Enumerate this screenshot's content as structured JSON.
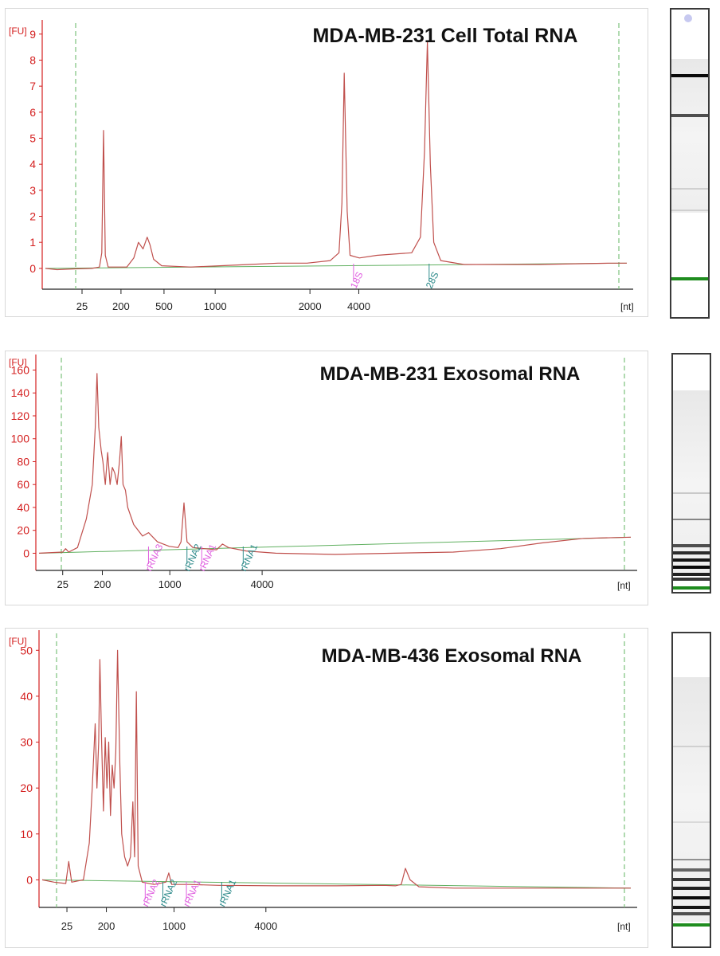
{
  "chart_data": [
    {
      "type": "line",
      "title": "MDA-MB-231 Cell Total RNA",
      "ylabel": "[FU]",
      "xlabel": "[nt]",
      "ylim": [
        -0.8,
        9.3
      ],
      "yticks": [
        0,
        1,
        2,
        3,
        4,
        5,
        6,
        7,
        8,
        9
      ],
      "xticks": [
        {
          "label": "25",
          "t": 0.063
        },
        {
          "label": "200",
          "t": 0.13
        },
        {
          "label": "500",
          "t": 0.204
        },
        {
          "label": "1000",
          "t": 0.292
        },
        {
          "label": "2000",
          "t": 0.455
        },
        {
          "label": "4000",
          "t": 0.539
        }
      ],
      "grid": false,
      "series": [
        {
          "values": [
            [
              0,
              0.0
            ],
            [
              0.02,
              -0.05
            ],
            [
              0.05,
              -0.02
            ],
            [
              0.08,
              0.0
            ],
            [
              0.093,
              0.05
            ],
            [
              0.097,
              0.6
            ],
            [
              0.1,
              5.3
            ],
            [
              0.103,
              0.5
            ],
            [
              0.108,
              0.05
            ],
            [
              0.14,
              0.05
            ],
            [
              0.152,
              0.4
            ],
            [
              0.16,
              1.0
            ],
            [
              0.168,
              0.75
            ],
            [
              0.175,
              1.2
            ],
            [
              0.18,
              0.9
            ],
            [
              0.186,
              0.35
            ],
            [
              0.2,
              0.1
            ],
            [
              0.25,
              0.05
            ],
            [
              0.3,
              0.1
            ],
            [
              0.35,
              0.15
            ],
            [
              0.4,
              0.2
            ],
            [
              0.45,
              0.2
            ],
            [
              0.49,
              0.3
            ],
            [
              0.505,
              0.6
            ],
            [
              0.51,
              2.5
            ],
            [
              0.514,
              7.5
            ],
            [
              0.519,
              2.2
            ],
            [
              0.524,
              0.5
            ],
            [
              0.54,
              0.4
            ],
            [
              0.57,
              0.5
            ],
            [
              0.6,
              0.55
            ],
            [
              0.63,
              0.6
            ],
            [
              0.645,
              1.2
            ],
            [
              0.652,
              4.5
            ],
            [
              0.657,
              8.7
            ],
            [
              0.662,
              4.0
            ],
            [
              0.668,
              1.0
            ],
            [
              0.68,
              0.3
            ],
            [
              0.72,
              0.15
            ],
            [
              0.78,
              0.15
            ],
            [
              0.85,
              0.15
            ],
            [
              0.92,
              0.18
            ],
            [
              0.97,
              0.2
            ],
            [
              1.0,
              0.2
            ]
          ]
        }
      ],
      "annotations": [
        {
          "label": "18S",
          "color": "#e060e0",
          "x": 0.53
        },
        {
          "label": "28S",
          "color": "#2e8b8b",
          "x": 0.66
        }
      ],
      "gel": {
        "bands": [
          {
            "pos": 0.21,
            "strength": 1.0
          },
          {
            "pos": 0.34,
            "strength": 0.7
          },
          {
            "pos": 0.58,
            "strength": 0.12
          },
          {
            "pos": 0.65,
            "strength": 0.12
          }
        ],
        "smear": [
          0.16,
          0.66
        ],
        "marker": 0.87,
        "well_dot": true
      }
    },
    {
      "type": "line",
      "title": "MDA-MB-231 Exosomal RNA",
      "ylabel": "[FU]",
      "xlabel": "[nt]",
      "ylim": [
        -15,
        168
      ],
      "yticks": [
        0,
        20,
        40,
        60,
        80,
        100,
        120,
        140,
        160
      ],
      "xticks": [
        {
          "label": "25",
          "t": 0.04
        },
        {
          "label": "200",
          "t": 0.107
        },
        {
          "label": "1000",
          "t": 0.221
        },
        {
          "label": "4000",
          "t": 0.377
        }
      ],
      "grid": false,
      "series": [
        {
          "values": [
            [
              0,
              0.0
            ],
            [
              0.04,
              1.0
            ],
            [
              0.045,
              4.0
            ],
            [
              0.05,
              1.0
            ],
            [
              0.065,
              5.0
            ],
            [
              0.08,
              30.0
            ],
            [
              0.09,
              60.0
            ],
            [
              0.095,
              110.0
            ],
            [
              0.098,
              157.0
            ],
            [
              0.101,
              110.0
            ],
            [
              0.105,
              90.0
            ],
            [
              0.108,
              80.0
            ],
            [
              0.112,
              60.0
            ],
            [
              0.116,
              88.0
            ],
            [
              0.12,
              60.0
            ],
            [
              0.124,
              75.0
            ],
            [
              0.128,
              70.0
            ],
            [
              0.132,
              60.0
            ],
            [
              0.136,
              80.0
            ],
            [
              0.139,
              102.0
            ],
            [
              0.142,
              60.0
            ],
            [
              0.146,
              55.0
            ],
            [
              0.15,
              40.0
            ],
            [
              0.16,
              25.0
            ],
            [
              0.175,
              15.0
            ],
            [
              0.185,
              18.0
            ],
            [
              0.2,
              10.0
            ],
            [
              0.22,
              6.0
            ],
            [
              0.235,
              5.0
            ],
            [
              0.24,
              10.0
            ],
            [
              0.245,
              44.0
            ],
            [
              0.25,
              10.0
            ],
            [
              0.26,
              5.0
            ],
            [
              0.28,
              4.0
            ],
            [
              0.3,
              3.0
            ],
            [
              0.31,
              8.0
            ],
            [
              0.32,
              5.0
            ],
            [
              0.35,
              2.0
            ],
            [
              0.4,
              0.0
            ],
            [
              0.5,
              -1.0
            ],
            [
              0.6,
              0.0
            ],
            [
              0.7,
              1.0
            ],
            [
              0.78,
              4.0
            ],
            [
              0.85,
              9.0
            ],
            [
              0.92,
              13.0
            ],
            [
              1.0,
              14.0
            ]
          ]
        }
      ],
      "annotations": [
        {
          "label": "rRNA3",
          "color": "#e060e0",
          "x": 0.185
        },
        {
          "label": "rRNA2",
          "color": "#2e8b8b",
          "x": 0.25
        },
        {
          "label": "rRNA1",
          "color": "#e060e0",
          "x": 0.275
        },
        {
          "label": "rRNA1",
          "color": "#2e8b8b",
          "x": 0.345
        }
      ],
      "gel": {
        "bands": [
          {
            "pos": 0.58,
            "strength": 0.15
          },
          {
            "pos": 0.69,
            "strength": 0.45
          },
          {
            "pos": 0.8,
            "strength": 0.7
          },
          {
            "pos": 0.83,
            "strength": 0.85
          },
          {
            "pos": 0.86,
            "strength": 0.95
          },
          {
            "pos": 0.89,
            "strength": 1.0
          },
          {
            "pos": 0.92,
            "strength": 0.9
          },
          {
            "pos": 0.94,
            "strength": 0.8
          }
        ],
        "smear": [
          0.15,
          0.93
        ],
        "marker": 0.975,
        "well_dot": false
      }
    },
    {
      "type": "line",
      "title": "MDA-MB-436 Exosomal RNA",
      "ylabel": "[FU]",
      "xlabel": "[nt]",
      "ylim": [
        -6,
        53
      ],
      "yticks": [
        0,
        10,
        20,
        30,
        40,
        50
      ],
      "xticks": [
        {
          "label": "25",
          "t": 0.042
        },
        {
          "label": "200",
          "t": 0.109
        },
        {
          "label": "1000",
          "t": 0.224
        },
        {
          "label": "4000",
          "t": 0.38
        }
      ],
      "grid": false,
      "series": [
        {
          "values": [
            [
              0,
              0.0
            ],
            [
              0.02,
              -0.5
            ],
            [
              0.04,
              -0.8
            ],
            [
              0.045,
              4.0
            ],
            [
              0.05,
              -0.5
            ],
            [
              0.07,
              0.0
            ],
            [
              0.08,
              8.0
            ],
            [
              0.085,
              20.0
            ],
            [
              0.09,
              34.0
            ],
            [
              0.093,
              20.0
            ],
            [
              0.096,
              30.0
            ],
            [
              0.098,
              48.0
            ],
            [
              0.101,
              30.0
            ],
            [
              0.104,
              15.0
            ],
            [
              0.107,
              31.0
            ],
            [
              0.11,
              20.0
            ],
            [
              0.113,
              30.0
            ],
            [
              0.116,
              14.0
            ],
            [
              0.119,
              25.0
            ],
            [
              0.122,
              20.0
            ],
            [
              0.125,
              28.0
            ],
            [
              0.128,
              50.0
            ],
            [
              0.132,
              25.0
            ],
            [
              0.135,
              10.0
            ],
            [
              0.14,
              5.0
            ],
            [
              0.145,
              3.0
            ],
            [
              0.15,
              5.0
            ],
            [
              0.154,
              17.0
            ],
            [
              0.157,
              5.0
            ],
            [
              0.16,
              41.0
            ],
            [
              0.163,
              3.0
            ],
            [
              0.17,
              -0.5
            ],
            [
              0.19,
              -1.0
            ],
            [
              0.21,
              -0.5
            ],
            [
              0.215,
              1.5
            ],
            [
              0.22,
              -1.0
            ],
            [
              0.25,
              -1.0
            ],
            [
              0.3,
              -1.2
            ],
            [
              0.4,
              -1.3
            ],
            [
              0.5,
              -1.3
            ],
            [
              0.58,
              -1.2
            ],
            [
              0.6,
              -1.3
            ],
            [
              0.61,
              -1.0
            ],
            [
              0.617,
              2.5
            ],
            [
              0.625,
              0.0
            ],
            [
              0.64,
              -1.5
            ],
            [
              0.7,
              -1.8
            ],
            [
              0.8,
              -1.8
            ],
            [
              0.9,
              -1.8
            ],
            [
              1.0,
              -1.8
            ]
          ]
        }
      ],
      "annotations": [
        {
          "label": "rRNA2",
          "color": "#e060e0",
          "x": 0.175
        },
        {
          "label": "rRNA2",
          "color": "#2e8b8b",
          "x": 0.205
        },
        {
          "label": "rRNA1",
          "color": "#e060e0",
          "x": 0.245
        },
        {
          "label": "rRNA1",
          "color": "#2e8b8b",
          "x": 0.305
        }
      ],
      "gel": {
        "bands": [
          {
            "pos": 0.36,
            "strength": 0.12
          },
          {
            "pos": 0.6,
            "strength": 0.08
          },
          {
            "pos": 0.72,
            "strength": 0.4
          },
          {
            "pos": 0.75,
            "strength": 0.6
          },
          {
            "pos": 0.78,
            "strength": 0.8
          },
          {
            "pos": 0.81,
            "strength": 0.9
          },
          {
            "pos": 0.84,
            "strength": 1.0
          },
          {
            "pos": 0.87,
            "strength": 0.95
          },
          {
            "pos": 0.89,
            "strength": 0.7
          }
        ],
        "smear": [
          0.14,
          0.92
        ],
        "marker": 0.925,
        "well_dot": false
      }
    }
  ]
}
